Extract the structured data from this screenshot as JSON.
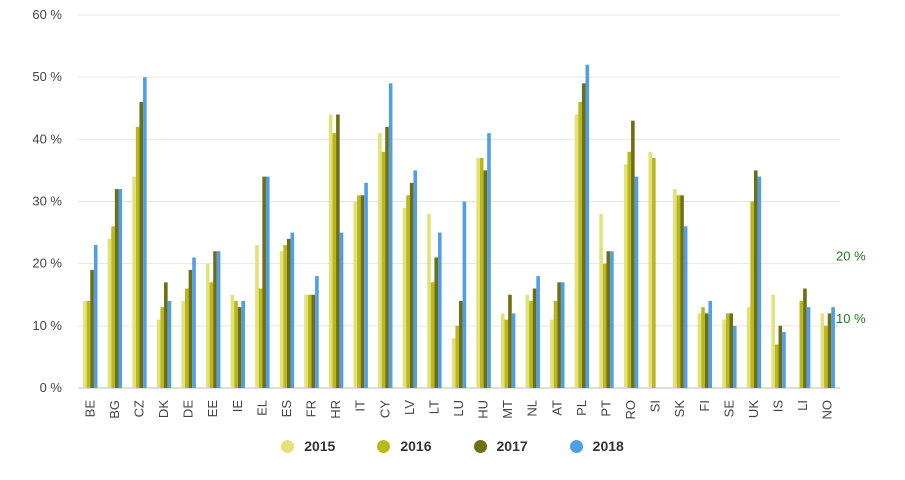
{
  "chart_data": {
    "type": "bar",
    "categories": [
      "BE",
      "BG",
      "CZ",
      "DK",
      "DE",
      "EE",
      "IE",
      "EL",
      "ES",
      "FR",
      "HR",
      "IT",
      "CY",
      "LV",
      "LT",
      "LU",
      "HU",
      "MT",
      "NL",
      "AT",
      "PL",
      "PT",
      "RO",
      "SI",
      "SK",
      "FI",
      "SE",
      "UK",
      "IS",
      "LI",
      "NO"
    ],
    "series": [
      {
        "name": "2015",
        "color": "#e3e27a",
        "values": [
          14,
          24,
          34,
          11,
          14,
          20,
          15,
          23,
          22,
          15,
          44,
          30,
          41,
          29,
          28,
          8,
          37,
          12,
          15,
          11,
          44,
          28,
          36,
          38,
          32,
          12,
          11,
          13,
          15,
          null,
          12
        ]
      },
      {
        "name": "2016",
        "color": "#b8b81c",
        "values": [
          14,
          26,
          42,
          13,
          16,
          17,
          14,
          16,
          23,
          15,
          41,
          31,
          38,
          31,
          17,
          10,
          37,
          11,
          14,
          14,
          46,
          20,
          38,
          37,
          31,
          13,
          12,
          30,
          7,
          14,
          10
        ]
      },
      {
        "name": "2017",
        "color": "#6e6e12",
        "values": [
          19,
          32,
          46,
          17,
          19,
          22,
          13,
          34,
          24,
          15,
          44,
          31,
          42,
          33,
          21,
          14,
          35,
          15,
          16,
          17,
          49,
          22,
          43,
          null,
          31,
          12,
          12,
          35,
          10,
          16,
          12
        ]
      },
      {
        "name": "2018",
        "color": "#4f9ee8",
        "values": [
          23,
          32,
          50,
          14,
          21,
          22,
          14,
          34,
          25,
          18,
          25,
          33,
          49,
          35,
          25,
          30,
          41,
          12,
          18,
          17,
          52,
          22,
          34,
          null,
          26,
          14,
          10,
          34,
          9,
          13,
          13
        ]
      }
    ],
    "yticks": [
      "0 %",
      "10 %",
      "20 %",
      "30 %",
      "40 %",
      "50 %",
      "60 %"
    ],
    "ylim": [
      0,
      60
    ],
    "grid": true,
    "legend_position": "bottom-center",
    "annotations": [
      {
        "text": "20 %",
        "value": 20,
        "color": "#1f7a1f"
      },
      {
        "text": "10 %",
        "value": 10,
        "color": "#1f7a1f"
      }
    ]
  }
}
